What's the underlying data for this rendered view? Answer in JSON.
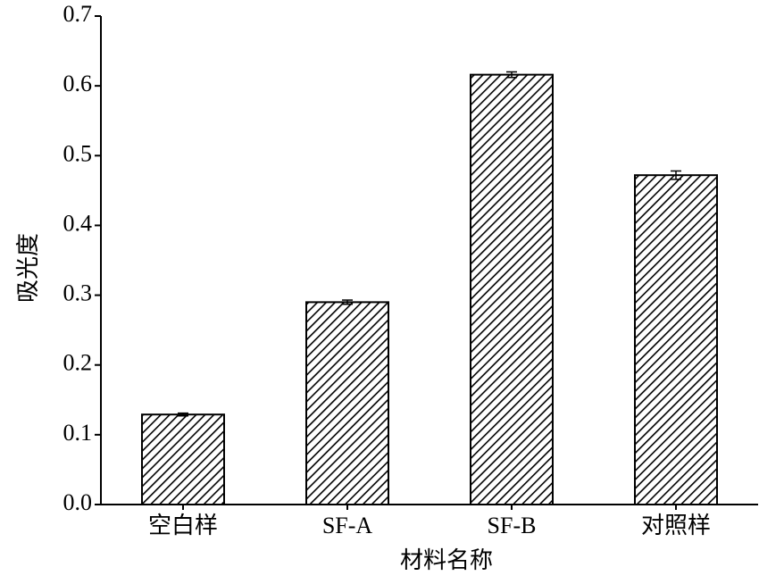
{
  "chart_data": {
    "type": "bar",
    "x_label": "材料名称",
    "y_label": "吸光度",
    "categories": [
      "空白样",
      "SF-A",
      "SF-B",
      "对照样"
    ],
    "values": [
      0.129,
      0.29,
      0.616,
      0.472
    ],
    "errors": [
      0.002,
      0.003,
      0.004,
      0.006
    ],
    "color": "#000000",
    "ylim": [
      0,
      0.7
    ],
    "yticks": [
      {
        "value": 0,
        "label": "0.0"
      },
      0.1,
      0.2,
      0.3,
      0.4,
      0.5,
      0.6,
      0.7
    ]
  }
}
